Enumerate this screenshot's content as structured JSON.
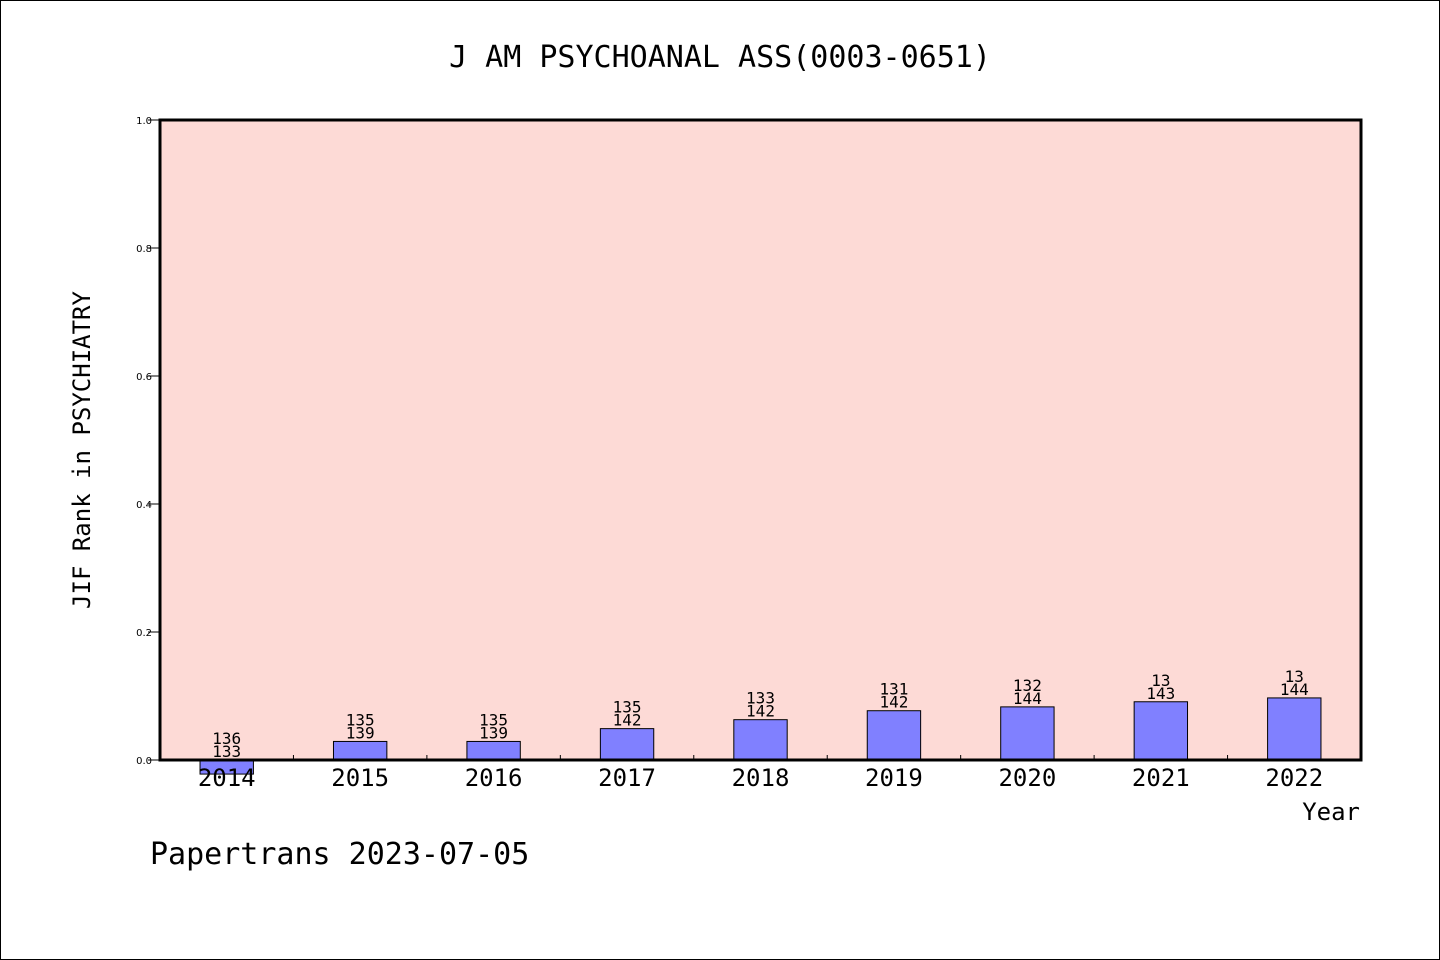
{
  "chart_data": {
    "type": "bar",
    "title": "J AM PSYCHOANAL ASS(0003-0651)",
    "xlabel": "Year",
    "ylabel": "JIF Rank in PSYCHIATRY",
    "ylim": [
      0,
      1.0
    ],
    "yticks": [
      "0.0",
      "0.2",
      "0.4",
      "0.6",
      "0.8",
      "1.0"
    ],
    "categories": [
      "2014",
      "2015",
      "2016",
      "2017",
      "2018",
      "2019",
      "2020",
      "2021",
      "2022"
    ],
    "values": [
      -0.022,
      0.029,
      0.029,
      0.049,
      0.063,
      0.077,
      0.083,
      0.091,
      0.097
    ],
    "label_top": [
      "136",
      "135",
      "135",
      "135",
      "133",
      "131",
      "132",
      "13",
      "13"
    ],
    "label_bottom": [
      "133",
      "139",
      "139",
      "142",
      "142",
      "142",
      "144",
      "143",
      "144"
    ],
    "grid": false,
    "colors": {
      "plot_bg": "#fddad6",
      "bar": "#8080ff",
      "axis": "#000000"
    }
  },
  "footer": "Papertrans 2023-07-05"
}
